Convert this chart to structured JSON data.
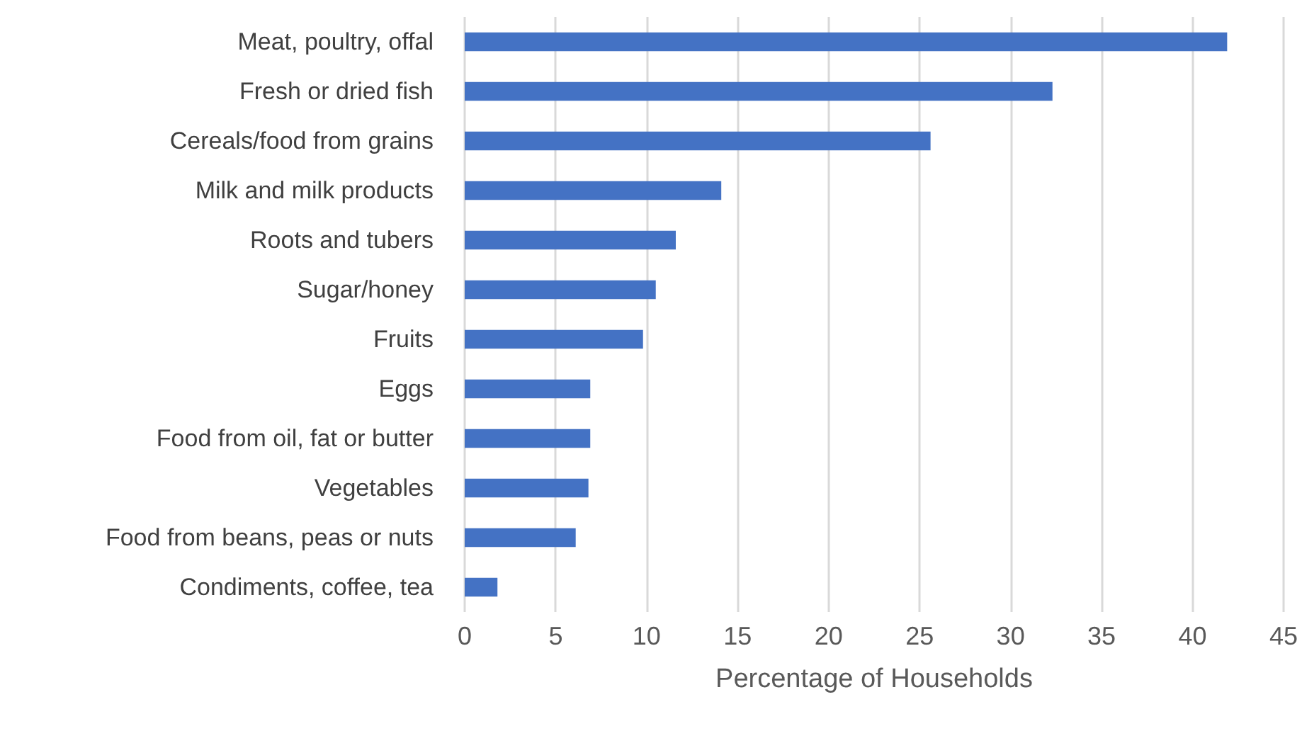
{
  "chart_data": {
    "type": "bar",
    "orientation": "horizontal",
    "xlabel": "Percentage of Households",
    "categories": [
      "Meat, poultry, offal",
      "Fresh or dried fish",
      "Cereals/food from grains",
      "Milk and milk products",
      "Roots and tubers",
      "Sugar/honey",
      "Fruits",
      "Eggs",
      "Food from oil, fat or butter",
      "Vegetables",
      "Food from beans, peas or nuts",
      "Condiments, coffee, tea"
    ],
    "values": [
      41.9,
      32.3,
      25.6,
      14.1,
      11.6,
      10.5,
      9.8,
      6.9,
      6.9,
      6.8,
      6.1,
      1.8
    ],
    "color": "#4472c4",
    "xlim": [
      0,
      45
    ],
    "xticks": [
      0,
      5,
      10,
      15,
      20,
      25,
      30,
      35,
      40,
      45
    ],
    "grid": "x"
  }
}
